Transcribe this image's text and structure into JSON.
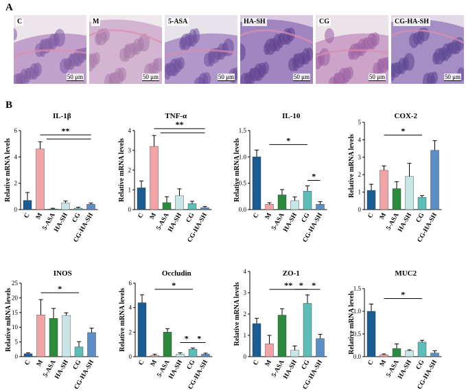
{
  "panel_labels": {
    "a": "A",
    "b": "B"
  },
  "micrographs": [
    {
      "label": "C",
      "scale": "50 μm",
      "bg": "#ece6ec",
      "tissue": "#b488c2",
      "stain": "#7d5aa0"
    },
    {
      "label": "M",
      "scale": "50 μm",
      "bg": "#efe9ee",
      "tissue": "#c9a3c8",
      "stain": "#a87aa8"
    },
    {
      "label": "5-ASA",
      "scale": "50 μm",
      "bg": "#e8e2ea",
      "tissue": "#9d7fbf",
      "stain": "#6a4c9a"
    },
    {
      "label": "HA-SH",
      "scale": "50 μm",
      "bg": "#d9c8e0",
      "tissue": "#8c6fb5",
      "stain": "#5c3f8e"
    },
    {
      "label": "CG",
      "scale": "50 μm",
      "bg": "#ebe2ea",
      "tissue": "#c28fbf",
      "stain": "#9a5fa0"
    },
    {
      "label": "CG-HA-SH",
      "scale": "50 μm",
      "bg": "#e3d9e6",
      "tissue": "#8f74b8",
      "stain": "#5b4390"
    }
  ],
  "group_colors": [
    "#1b5c93",
    "#f2a3a6",
    "#2b8a3e",
    "#c8e6e8",
    "#5dbdb8",
    "#5a8ec4"
  ],
  "chart_data": [
    {
      "type": "bar",
      "title": "IL-1β",
      "ylabel": "Relative mRNA levels",
      "categories": [
        "C",
        "M",
        "5-ASA",
        "HA-SH",
        "CG",
        "CG-HA-SH"
      ],
      "values": [
        0.7,
        4.6,
        0.05,
        0.5,
        0.1,
        0.4
      ],
      "errors": [
        0.6,
        0.55,
        0.05,
        0.15,
        0.08,
        0.1
      ],
      "ylim": [
        0,
        6
      ],
      "yticks": [
        0,
        2,
        4,
        6
      ],
      "sig": [
        {
          "from": 1,
          "to": [
            2,
            5
          ],
          "label": "**"
        }
      ]
    },
    {
      "type": "bar",
      "title": "TNF-α",
      "ylabel": "Relative mRNA levels",
      "categories": [
        "C",
        "M",
        "5-ASA",
        "HA-SH",
        "CG",
        "CG-HA-SH"
      ],
      "values": [
        1.1,
        3.2,
        0.35,
        0.7,
        0.3,
        0.1
      ],
      "errors": [
        0.35,
        0.55,
        0.3,
        0.35,
        0.12,
        0.06
      ],
      "ylim": [
        0,
        4
      ],
      "yticks": [
        0,
        1,
        2,
        3,
        4
      ],
      "sig": [
        {
          "from": 1,
          "to": [
            2,
            5
          ],
          "label": "**"
        }
      ]
    },
    {
      "type": "bar",
      "title": "IL-10",
      "ylabel": "Relative mRNA levels",
      "categories": [
        "C",
        "M",
        "5-ASA",
        "HA-SH",
        "CG",
        "CG-HA-SH"
      ],
      "values": [
        1.0,
        0.1,
        0.28,
        0.17,
        0.35,
        0.1
      ],
      "errors": [
        0.13,
        0.03,
        0.1,
        0.07,
        0.1,
        0.05
      ],
      "ylim": [
        0,
        1.5
      ],
      "yticks": [
        0.0,
        0.5,
        1.0,
        1.5
      ],
      "sig": [
        {
          "from": 1,
          "to": [
            4,
            4
          ],
          "label": "*"
        },
        {
          "from": 4,
          "to": [
            5,
            5
          ],
          "label": "*"
        }
      ]
    },
    {
      "type": "bar",
      "title": "COX-2",
      "ylabel": "Relative mRNA levels",
      "categories": [
        "C",
        "M",
        "5-ASA",
        "HA-SH",
        "CG",
        "CG-HA-SH"
      ],
      "values": [
        1.1,
        2.25,
        1.2,
        1.9,
        0.7,
        3.4
      ],
      "errors": [
        0.35,
        0.25,
        0.4,
        0.75,
        0.1,
        0.55
      ],
      "ylim": [
        0,
        5
      ],
      "yticks": [
        0,
        1,
        2,
        3,
        4,
        5
      ],
      "sig": [
        {
          "from": 1,
          "to": [
            4,
            4
          ],
          "label": "*"
        }
      ]
    },
    {
      "type": "bar",
      "title": "INOS",
      "ylabel": "Relative mRNA levels",
      "categories": [
        "C",
        "M",
        "5-ASA",
        "HA-SH",
        "CG",
        "CG-HA-SH"
      ],
      "values": [
        1.0,
        14.2,
        13.0,
        14.0,
        3.3,
        8.2
      ],
      "errors": [
        0.3,
        5.2,
        3.4,
        0.9,
        1.8,
        1.5
      ],
      "ylim": [
        0,
        25
      ],
      "yticks": [
        0,
        5,
        10,
        15,
        20,
        25
      ],
      "sig": [
        {
          "from": 1,
          "to": [
            4,
            4
          ],
          "label": "*"
        }
      ]
    },
    {
      "type": "bar",
      "title": "Occludin",
      "ylabel": "Relative mRNA levels",
      "categories": [
        "C",
        "M",
        "5-ASA",
        "HA-SH",
        "CG",
        "CG-HA-SH"
      ],
      "values": [
        4.4,
        0.1,
        2.0,
        0.2,
        0.6,
        0.2
      ],
      "errors": [
        0.65,
        0.1,
        0.28,
        0.12,
        0.1,
        0.08
      ],
      "ylim": [
        0,
        6
      ],
      "yticks": [
        0,
        2,
        4,
        6
      ],
      "sig": [
        {
          "from": 1,
          "to": [
            4,
            4
          ],
          "label": "*"
        },
        {
          "from": 3,
          "to": [
            4,
            4
          ],
          "label": "*"
        },
        {
          "from": 4,
          "to": [
            5,
            5
          ],
          "label": "*"
        }
      ]
    },
    {
      "type": "bar",
      "title": "ZO-1",
      "ylabel": "Relative mRNA levels",
      "categories": [
        "C",
        "M",
        "5-ASA",
        "HA-SH",
        "CG",
        "CG-HA-SH"
      ],
      "values": [
        1.55,
        0.6,
        1.95,
        0.3,
        2.5,
        0.85
      ],
      "errors": [
        0.25,
        0.4,
        0.3,
        0.2,
        0.4,
        0.2
      ],
      "ylim": [
        0,
        4
      ],
      "yticks": [
        0,
        1,
        2,
        3,
        4
      ],
      "sig": [
        {
          "from": 1,
          "to": [
            4,
            4
          ],
          "label": "**"
        },
        {
          "from": 3,
          "to": [
            4,
            4
          ],
          "label": "*"
        },
        {
          "from": 4,
          "to": [
            5,
            5
          ],
          "label": "*"
        }
      ]
    },
    {
      "type": "bar",
      "title": "MUC2",
      "ylabel": "Relative mRNA levels",
      "categories": [
        "C",
        "M",
        "5-ASA",
        "HA-SH",
        "CG",
        "CG-HA-SH"
      ],
      "values": [
        1.0,
        0.04,
        0.18,
        0.13,
        0.32,
        0.08
      ],
      "errors": [
        0.16,
        0.02,
        0.1,
        0.02,
        0.04,
        0.05
      ],
      "ylim": [
        0,
        1.5
      ],
      "yticks": [
        0.0,
        0.5,
        1.0,
        1.5
      ],
      "sig": [
        {
          "from": 1,
          "to": [
            4,
            4
          ],
          "label": "*"
        }
      ]
    }
  ]
}
